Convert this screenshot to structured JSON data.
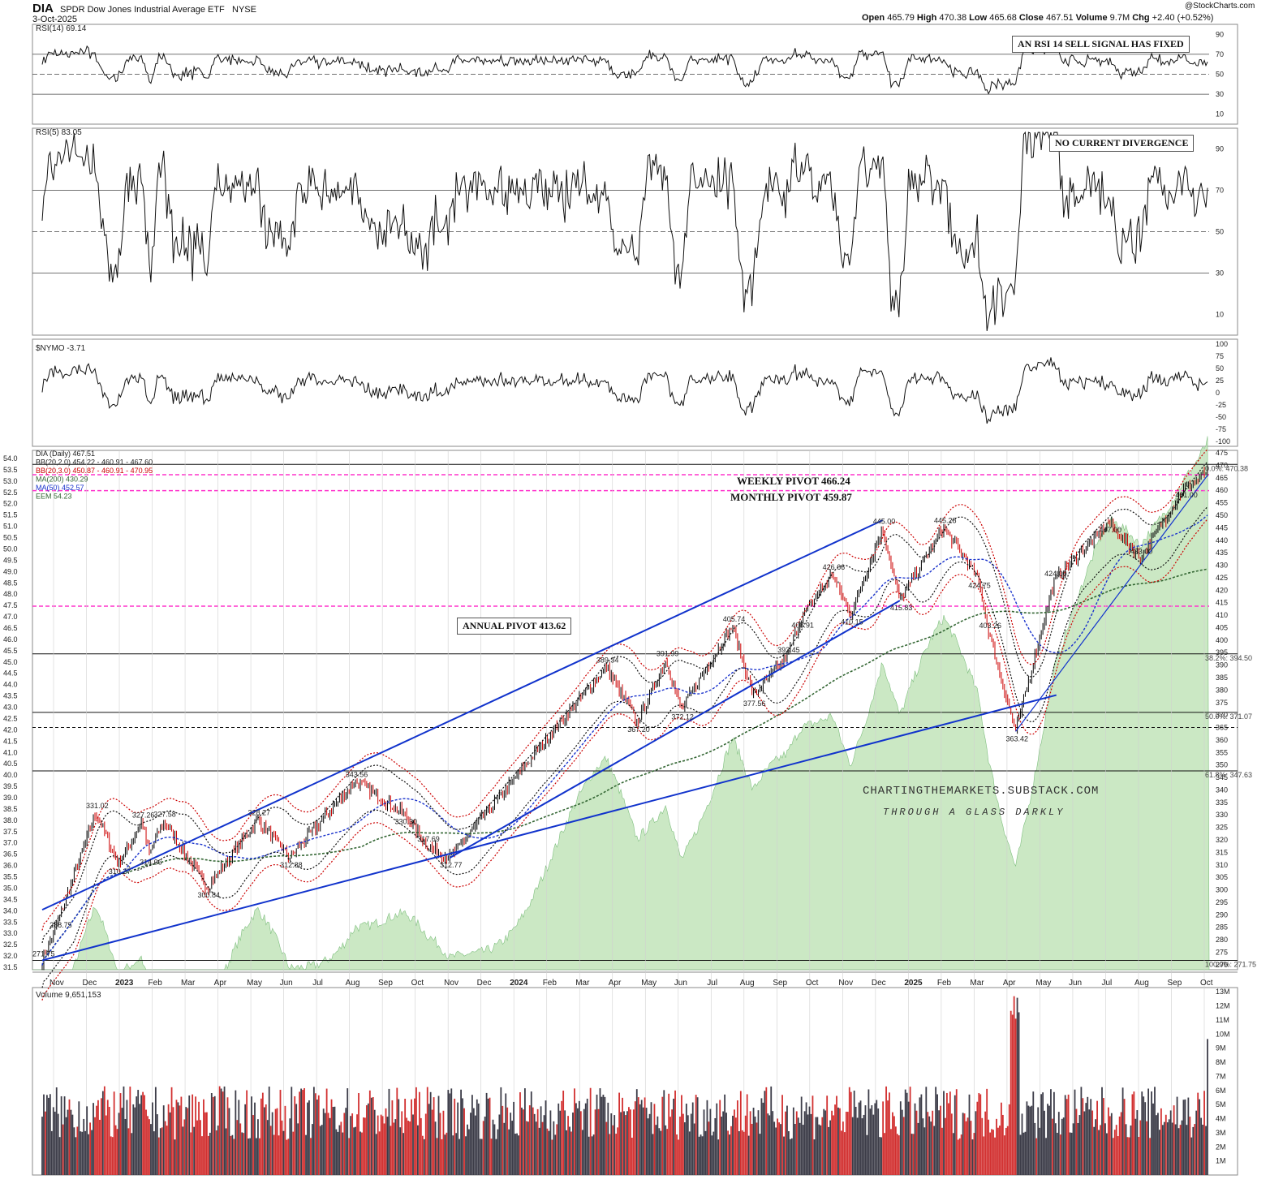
{
  "header": {
    "symbol": "DIA",
    "name": "SPDR Dow Jones Industrial Average ETF",
    "exchange": "NYSE",
    "date": "3-Oct-2025",
    "copyright": "@StockCharts.com",
    "ohlc": {
      "open_label": "Open",
      "open": "465.79",
      "high_label": "High",
      "high": "470.38",
      "low_label": "Low",
      "low": "465.68",
      "close_label": "Close",
      "close": "467.51",
      "volume_label": "Volume",
      "volume": "9.7M",
      "chg_label": "Chg",
      "chg": "+2.40 (+0.52%)"
    }
  },
  "colors": {
    "price_up": "#000000",
    "price_down": "#cc0000",
    "bb_20_2": "#111111",
    "bb_20_3": "#cc0000",
    "ma200": "#336633",
    "ma50": "#1a33cc",
    "eem_fill": "#b9e0b0",
    "trendline": "#1133cc",
    "pivot": "#ff33cc",
    "overbought": "#4d7a3d",
    "oversold": "#8b4b3d",
    "divergence_sell": "#e01010",
    "divergence_buy": "#1133cc"
  },
  "panels": {
    "rsi14": {
      "legend": "RSI(14) 69.14",
      "annotation": "AN RSI 14 SELL SIGNAL HAS FIXED",
      "ticks": [
        "90",
        "70",
        "50",
        "30",
        "10"
      ]
    },
    "rsi5": {
      "legend": "RSI(5) 83.05",
      "annotation": "NO CURRENT DIVERGENCE",
      "ticks": [
        "90",
        "70",
        "50",
        "30",
        "10"
      ]
    },
    "nymo": {
      "legend": "$NYMO -3.71",
      "ticks": [
        "100",
        "75",
        "50",
        "25",
        "0",
        "-25",
        "-50",
        "-75",
        "-100"
      ]
    },
    "price": {
      "legend": [
        "DIA (Daily) 467.51",
        "BB(20,2.0) 454.22 - 460.91 - 467.60",
        "BB(20,3.0) 450.87 - 460.91 - 470.95",
        "MA(200) 430.29",
        "MA(50) 452.57",
        "EEM 54.23"
      ],
      "pivots": [
        {
          "label": "WEEKLY PIVOT 466.24",
          "value": 466.24
        },
        {
          "label": "MONTHLY PIVOT 459.87",
          "value": 459.87
        },
        {
          "label": "ANNUAL PIVOT 413.62",
          "value": 413.62
        }
      ],
      "fib_labels": [
        {
          "text": "0.0%: 470.38",
          "value": 470.38
        },
        {
          "text": "38.2%: 394.50",
          "value": 394.5
        },
        {
          "text": "50.0%: 371.07",
          "value": 371.07
        },
        {
          "text": "61.8%: 347.63",
          "value": 347.63
        },
        {
          "text": "100.0%: 271.75",
          "value": 271.75
        }
      ],
      "right_ticks": [
        "475",
        "470",
        "465",
        "460",
        "455",
        "450",
        "445",
        "440",
        "435",
        "430",
        "425",
        "420",
        "415",
        "410",
        "405",
        "400",
        "395",
        "390",
        "385",
        "380",
        "375",
        "370",
        "365",
        "360",
        "355",
        "350",
        "345",
        "340",
        "335",
        "330",
        "325",
        "320",
        "315",
        "310",
        "305",
        "300",
        "295",
        "290",
        "285",
        "280",
        "275",
        "270"
      ],
      "left_ticks": [
        "54.0",
        "53.5",
        "53.0",
        "52.5",
        "52.0",
        "51.5",
        "51.0",
        "50.5",
        "50.0",
        "49.5",
        "49.0",
        "48.5",
        "48.0",
        "47.5",
        "47.0",
        "46.5",
        "46.0",
        "45.5",
        "45.0",
        "44.5",
        "44.0",
        "43.5",
        "43.0",
        "42.5",
        "42.0",
        "41.5",
        "41.0",
        "40.5",
        "40.0",
        "39.5",
        "39.0",
        "38.5",
        "38.0",
        "37.5",
        "37.0",
        "36.5",
        "36.0",
        "35.5",
        "35.0",
        "34.5",
        "34.0",
        "33.5",
        "33.0",
        "32.5",
        "32.0",
        "31.5"
      ],
      "watermark_1": "CHARTINGTHEMARKETS.SUBSTACK.COM",
      "watermark_2": "THROUGH A GLASS DARKLY"
    },
    "volume": {
      "legend": "Volume 9,651,153",
      "ticks": [
        "13M",
        "12M",
        "11M",
        "10M",
        "9M",
        "8M",
        "7M",
        "6M",
        "5M",
        "4M",
        "3M",
        "2M",
        "1M"
      ]
    }
  },
  "x_axis": [
    "Nov",
    "Dec",
    "2023",
    "Feb",
    "Mar",
    "Apr",
    "May",
    "Jun",
    "Jul",
    "Aug",
    "Sep",
    "Oct",
    "Nov",
    "Dec",
    "2024",
    "Feb",
    "Mar",
    "Apr",
    "May",
    "Jun",
    "Jul",
    "Aug",
    "Sep",
    "Oct",
    "Nov",
    "Dec",
    "2025",
    "Feb",
    "Mar",
    "Apr",
    "May",
    "Jun",
    "Jul",
    "Aug",
    "Sep",
    "Oct"
  ],
  "chart_data": {
    "type": "line",
    "title": "DIA SPDR Dow Jones Industrial Average ETF NYSE",
    "x_range": [
      "2022-10-12",
      "2025-10-03"
    ],
    "ylim": [
      268,
      476
    ],
    "price_swings": [
      {
        "date": "2022-10-12",
        "value": 271.75
      },
      {
        "date": "2022-10-28",
        "value": 288.75
      },
      {
        "date": "2022-12-01",
        "value": 331.02
      },
      {
        "date": "2022-12-22",
        "value": 310.27
      },
      {
        "date": "2023-01-13",
        "value": 327.26
      },
      {
        "date": "2023-01-20",
        "value": 314.06
      },
      {
        "date": "2023-02-02",
        "value": 327.58
      },
      {
        "date": "2023-03-15",
        "value": 300.84
      },
      {
        "date": "2023-05-01",
        "value": 328.27
      },
      {
        "date": "2023-05-31",
        "value": 312.88
      },
      {
        "date": "2023-07-31",
        "value": 343.56
      },
      {
        "date": "2023-09-15",
        "value": 330.3
      },
      {
        "date": "2023-10-06",
        "value": 317.69
      },
      {
        "date": "2023-10-27",
        "value": 312.77
      },
      {
        "date": "2024-03-21",
        "value": 389.34
      },
      {
        "date": "2024-04-19",
        "value": 367.2
      },
      {
        "date": "2024-05-16",
        "value": 391.99
      },
      {
        "date": "2024-05-30",
        "value": 372.12
      },
      {
        "date": "2024-07-17",
        "value": 405.74
      },
      {
        "date": "2024-08-05",
        "value": 377.56
      },
      {
        "date": "2024-09-06",
        "value": 393.45
      },
      {
        "date": "2024-09-19",
        "value": 408.91
      },
      {
        "date": "2024-10-18",
        "value": 426.66
      },
      {
        "date": "2024-11-04",
        "value": 410.15
      },
      {
        "date": "2024-12-04",
        "value": 445.0
      },
      {
        "date": "2024-12-20",
        "value": 415.83
      },
      {
        "date": "2025-01-30",
        "value": 445.28
      },
      {
        "date": "2025-03-03",
        "value": 424.75
      },
      {
        "date": "2025-03-13",
        "value": 403.26
      },
      {
        "date": "2025-04-07",
        "value": 363.42
      },
      {
        "date": "2025-05-13",
        "value": 424.0
      },
      {
        "date": "2025-07-03",
        "value": 447.0
      },
      {
        "date": "2025-08-01",
        "value": 433.0
      },
      {
        "date": "2025-09-12",
        "value": 461.0
      },
      {
        "date": "2025-10-03",
        "value": 467.51
      }
    ],
    "horizontal_levels": [
      470.38,
      394.5,
      371.07,
      365.0,
      347.63,
      271.75
    ],
    "pivot_levels": [
      466.24,
      459.87,
      413.62
    ],
    "current": {
      "close": 467.51,
      "ma50": 452.57,
      "ma200": 430.29,
      "rsi14": 69.14,
      "rsi5": 83.05,
      "nymo": -3.71,
      "volume": 9651153
    }
  }
}
